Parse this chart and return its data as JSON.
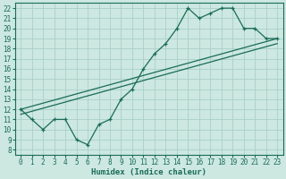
{
  "title": "",
  "xlabel": "Humidex (Indice chaleur)",
  "ylabel": "",
  "xlim": [
    -0.5,
    23.5
  ],
  "ylim": [
    7.5,
    22.5
  ],
  "xticks": [
    0,
    1,
    2,
    3,
    4,
    5,
    6,
    7,
    8,
    9,
    10,
    11,
    12,
    13,
    14,
    15,
    16,
    17,
    18,
    19,
    20,
    21,
    22,
    23
  ],
  "yticks": [
    8,
    9,
    10,
    11,
    12,
    13,
    14,
    15,
    16,
    17,
    18,
    19,
    20,
    21,
    22
  ],
  "bg_color": "#cce8e0",
  "grid_color": "#aacfc8",
  "line_color": "#1a6b58",
  "line1_x": [
    0,
    1,
    2,
    3,
    4,
    5,
    6,
    7,
    8,
    9,
    10,
    11,
    12,
    13,
    14,
    15,
    16,
    17,
    18,
    19,
    20,
    21,
    22,
    23
  ],
  "line1_y": [
    12,
    11,
    10,
    11,
    11,
    9,
    8.5,
    10.5,
    11,
    13,
    14,
    16,
    17.5,
    18.5,
    20,
    22,
    21,
    21.5,
    22,
    22,
    20,
    20,
    19,
    19
  ],
  "line2_x": [
    0,
    23
  ],
  "line2_y": [
    12,
    19
  ],
  "line3_x": [
    0,
    23
  ],
  "line3_y": [
    11.5,
    18.5
  ],
  "tick_fontsize": 5.5,
  "label_fontsize": 6.5
}
